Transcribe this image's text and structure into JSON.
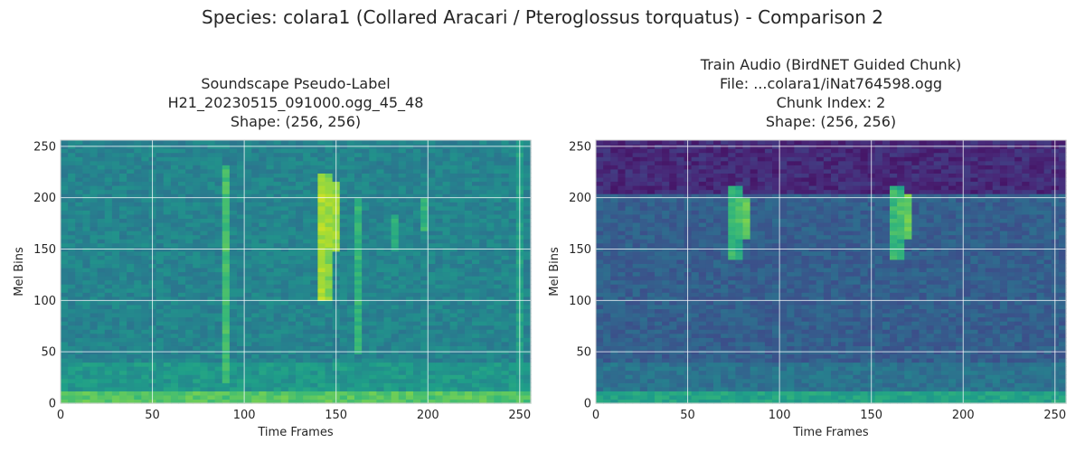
{
  "suptitle": "Species: colara1 (Collared Aracari / Pteroglossus torquatus) - Comparison 2",
  "chart_data": [
    {
      "type": "heatmap",
      "title_lines": [
        "Soundscape Pseudo-Label",
        "H21_20230515_091000.ogg_45_48",
        "Shape: (256, 256)"
      ],
      "xlabel": "Time Frames",
      "ylabel": "Mel Bins",
      "xlim": [
        0,
        256
      ],
      "ylim": [
        0,
        256
      ],
      "xticks": [
        0,
        50,
        100,
        150,
        200,
        250
      ],
      "yticks": [
        0,
        50,
        100,
        150,
        200,
        250
      ],
      "grid": true,
      "colormap": "viridis",
      "background_level": 0.45,
      "top_band": null,
      "features": [
        {
          "t": 90,
          "width": 2,
          "mel_from": 20,
          "mel_to": 230,
          "level": 0.7
        },
        {
          "t": 143,
          "width": 4,
          "mel_from": 100,
          "mel_to": 225,
          "level": 0.9
        },
        {
          "t": 148,
          "width": 4,
          "mel_from": 150,
          "mel_to": 215,
          "level": 0.9
        },
        {
          "t": 162,
          "width": 2,
          "mel_from": 50,
          "mel_to": 200,
          "level": 0.65
        },
        {
          "t": 183,
          "width": 2,
          "mel_from": 150,
          "mel_to": 185,
          "level": 0.65
        },
        {
          "t": 198,
          "width": 2,
          "mel_from": 170,
          "mel_to": 200,
          "level": 0.65
        },
        {
          "t": 251,
          "width": 2,
          "mel_from": 30,
          "mel_to": 255,
          "level": 0.6
        }
      ]
    },
    {
      "type": "heatmap",
      "title_lines": [
        "Train Audio (BirdNET Guided Chunk)",
        "File: ...colara1/iNat764598.ogg",
        "Chunk Index: 2",
        "Shape: (256, 256)"
      ],
      "xlabel": "Time Frames",
      "ylabel": "Mel Bins",
      "xlim": [
        0,
        256
      ],
      "ylim": [
        0,
        256
      ],
      "xticks": [
        0,
        50,
        100,
        150,
        200,
        250
      ],
      "yticks": [
        0,
        50,
        100,
        150,
        200,
        250
      ],
      "grid": true,
      "colormap": "viridis",
      "background_level": 0.3,
      "top_band": {
        "mel_from": 205,
        "mel_to": 256,
        "level": 0.12
      },
      "features": [
        {
          "t": 75,
          "width": 3,
          "mel_from": 140,
          "mel_to": 210,
          "level": 0.7
        },
        {
          "t": 81,
          "width": 4,
          "mel_from": 160,
          "mel_to": 200,
          "level": 0.8
        },
        {
          "t": 163,
          "width": 3,
          "mel_from": 140,
          "mel_to": 210,
          "level": 0.7
        },
        {
          "t": 169,
          "width": 4,
          "mel_from": 160,
          "mel_to": 205,
          "level": 0.8
        }
      ]
    }
  ]
}
